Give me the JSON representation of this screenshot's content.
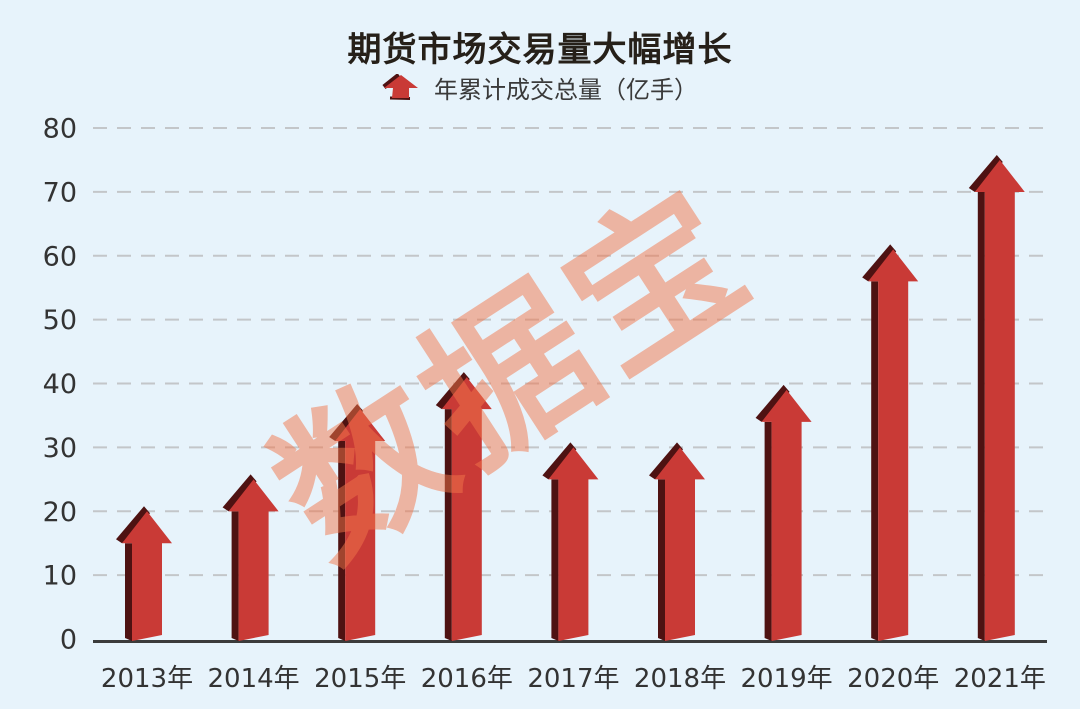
{
  "title": "期货市场交易量大幅增长",
  "legend": {
    "label": "年累计成交总量（亿手）",
    "icon": "up-arrow-icon"
  },
  "watermark": {
    "text": "数据宝"
  },
  "colors": {
    "background": "#E7F3FB",
    "arrow_red": "#C93A36",
    "arrow_dark": "#4E1212",
    "watermark": "#F2764B",
    "grid": "#C3C6C9",
    "axis": "#3B3B3B",
    "text": "#333333",
    "title_text": "#262019"
  },
  "chart_data": {
    "type": "bar",
    "title": "期货市场交易量大幅增长",
    "categories": [
      "2013年",
      "2014年",
      "2015年",
      "2016年",
      "2017年",
      "2018年",
      "2019年",
      "2020年",
      "2021年"
    ],
    "series": [
      {
        "name": "年累计成交总量（亿手）",
        "values": [
          20,
          25,
          36,
          41,
          30,
          30,
          39,
          61,
          75
        ]
      }
    ],
    "xlabel": "",
    "ylabel": "",
    "unit": "亿手",
    "ylim": [
      0,
      80
    ],
    "yticks": [
      0,
      10,
      20,
      30,
      40,
      50,
      60,
      70,
      80
    ],
    "grid": "horizontal-dashed",
    "legend_position": "top-center",
    "bar_style": "3d-up-arrow"
  }
}
